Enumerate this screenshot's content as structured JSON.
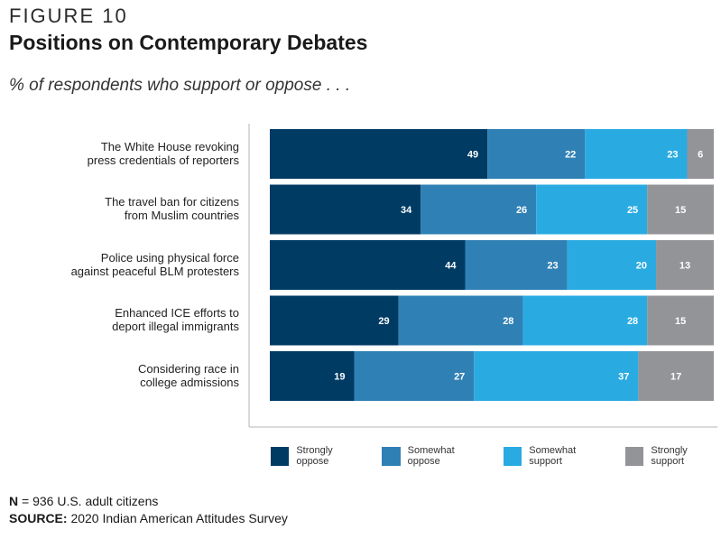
{
  "figure_label": "FIGURE 10",
  "title": "Positions on Contemporary Debates",
  "subtitle": "% of respondents who support or oppose . . .",
  "footer": {
    "n_label": "N",
    "n_text": "= 936 U.S. adult citizens",
    "source_label": "SOURCE:",
    "source_text": "2020 Indian American Attitudes Survey"
  },
  "colors": {
    "strongly_oppose": "#003b64",
    "somewhat_oppose": "#2f80b5",
    "somewhat_support": "#29abe2",
    "strongly_support": "#929497"
  },
  "chart_data": {
    "type": "bar",
    "orientation": "horizontal",
    "stacked": true,
    "categories": [
      [
        "The White House revoking",
        "press credentials of reporters"
      ],
      [
        "The travel ban for citizens",
        "from Muslim countries"
      ],
      [
        "Police using physical force",
        "against peaceful BLM protesters"
      ],
      [
        "Enhanced ICE efforts to",
        "deport illegal immigrants"
      ],
      [
        "Considering race in",
        "college admissions"
      ]
    ],
    "series": [
      {
        "name": "Strongly oppose",
        "values": [
          49,
          34,
          44,
          29,
          19
        ]
      },
      {
        "name": "Somewhat oppose",
        "values": [
          22,
          26,
          23,
          28,
          27
        ]
      },
      {
        "name": "Somewhat support",
        "values": [
          23,
          25,
          20,
          28,
          37
        ]
      },
      {
        "name": "Strongly support",
        "values": [
          6,
          15,
          13,
          15,
          17
        ]
      }
    ],
    "xlim": [
      0,
      100
    ],
    "legend_position": "bottom",
    "grid": false
  }
}
